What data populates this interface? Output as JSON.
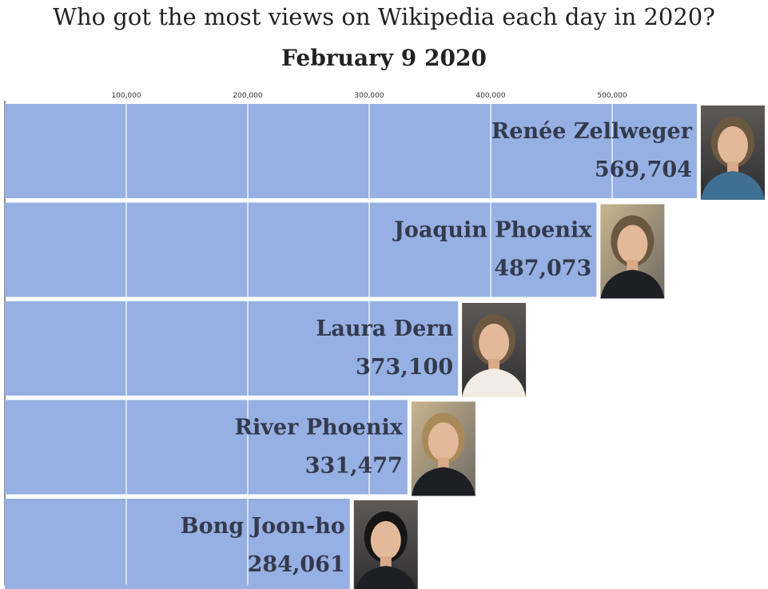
{
  "header": {
    "title": "Who got the most views on Wikipedia each day in 2020?",
    "date": "February 9 2020"
  },
  "colors": {
    "bar": "#97b0e3",
    "text": "#333a4d",
    "grid": "#ffffff"
  },
  "chart_data": {
    "type": "bar",
    "orientation": "horizontal",
    "title": "Who got the most views on Wikipedia each day in 2020?",
    "subtitle": "February 9 2020",
    "xlim": [
      0,
      575000
    ],
    "ticks": [
      {
        "value": 100000,
        "label": "100,000"
      },
      {
        "value": 200000,
        "label": "200,000"
      },
      {
        "value": 300000,
        "label": "300,000"
      },
      {
        "value": 400000,
        "label": "400,000"
      },
      {
        "value": 500000,
        "label": "500,000"
      }
    ],
    "categories": [
      "Renée Zellweger",
      "Joaquin Phoenix",
      "Laura Dern",
      "River Phoenix",
      "Bong Joon-ho"
    ],
    "values": [
      569704,
      487073,
      373100,
      331477,
      284061
    ],
    "value_labels": [
      "569,704",
      "487,073",
      "373,100",
      "331,477",
      "284,061"
    ],
    "grid": true,
    "portraits": [
      "portrait-photo",
      "portrait-photo",
      "portrait-photo",
      "portrait-photo",
      "portrait-photo"
    ]
  }
}
